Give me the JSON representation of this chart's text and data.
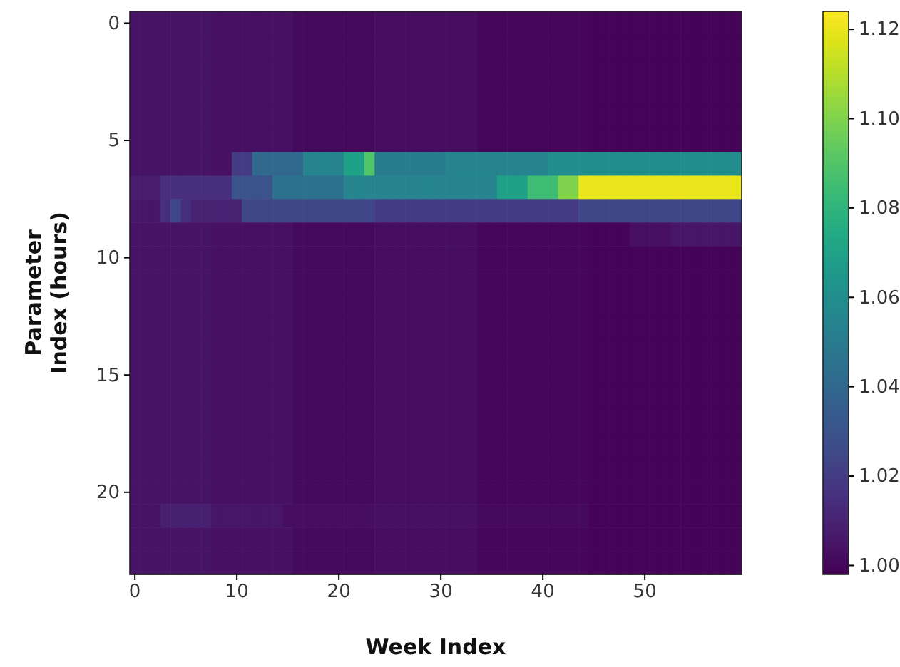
{
  "chart_data": {
    "type": "heatmap",
    "xlabel": "Week Index",
    "ylabel": "Parameter Index (hours)",
    "categories": [
      "0",
      null,
      null,
      null,
      null,
      null,
      null,
      null,
      null,
      null,
      "10",
      null,
      null,
      null,
      null,
      null,
      null,
      null,
      null,
      null,
      "20",
      null,
      null,
      null,
      null,
      null,
      null,
      null,
      null,
      null,
      "30",
      null,
      null,
      null,
      null,
      null,
      null,
      null,
      null,
      null,
      "40",
      null,
      null,
      null,
      null,
      null,
      null,
      null,
      null,
      null,
      "50",
      null,
      null,
      null,
      null,
      null,
      null,
      null,
      null,
      null
    ],
    "y_categories": [
      "0",
      null,
      null,
      null,
      null,
      "5",
      null,
      null,
      null,
      null,
      "10",
      null,
      null,
      null,
      null,
      "15",
      null,
      null,
      null,
      null,
      "20",
      null,
      null,
      null
    ],
    "clim": [
      0.998,
      1.124
    ],
    "cticks": [
      {
        "value": 1,
        "label": "1.00"
      },
      1.02,
      1.04,
      1.06,
      1.08,
      {
        "value": 1.1,
        "label": "1.10"
      },
      1.12
    ],
    "cells": [
      [
        1.004,
        1.004,
        1.004,
        1.004,
        1.004,
        1.004,
        1.004,
        1.004,
        1.003,
        1.003,
        1.003,
        1.003,
        1.003,
        1.003,
        1.003,
        1.003,
        1.001,
        1.001,
        1.001,
        1.001,
        1.001,
        1.001,
        1.001,
        1.001,
        1.002,
        1.002,
        1.002,
        1.002,
        1.002,
        1.002,
        1.002,
        1.002,
        1.002,
        1.002,
        1,
        1,
        1,
        1,
        1,
        1,
        1,
        1,
        1,
        1,
        1,
        0.999,
        0.999,
        0.999,
        0.999,
        0.999,
        0.999,
        0.999,
        0.999,
        0.999,
        0.999,
        0.999,
        0.999,
        0.999,
        0.999,
        0.999
      ],
      [
        1.004,
        1.004,
        1.004,
        1.004,
        1.004,
        1.004,
        1.004,
        1.004,
        1.003,
        1.003,
        1.003,
        1.003,
        1.003,
        1.003,
        1.003,
        1.003,
        1.001,
        1.001,
        1.001,
        1.001,
        1.001,
        1.001,
        1.001,
        1.001,
        1.002,
        1.002,
        1.002,
        1.002,
        1.002,
        1.002,
        1.002,
        1.002,
        1.002,
        1.002,
        1,
        1,
        1,
        1,
        1,
        1,
        1,
        1,
        1,
        1,
        1,
        0.999,
        0.999,
        0.999,
        0.999,
        0.999,
        0.999,
        0.999,
        0.999,
        0.999,
        0.999,
        0.999,
        0.999,
        0.999,
        0.999,
        0.999
      ],
      [
        1.004,
        1.004,
        1.004,
        1.004,
        1.004,
        1.004,
        1.004,
        1.004,
        1.003,
        1.003,
        1.003,
        1.003,
        1.003,
        1.003,
        1.003,
        1.003,
        1.001,
        1.001,
        1.001,
        1.001,
        1.001,
        1.001,
        1.001,
        1.001,
        1.002,
        1.002,
        1.002,
        1.002,
        1.002,
        1.002,
        1.002,
        1.002,
        1.002,
        1.002,
        1,
        1,
        1,
        1,
        1,
        1,
        1,
        1,
        1,
        1,
        1,
        0.999,
        0.999,
        0.999,
        0.999,
        0.999,
        0.999,
        0.999,
        0.999,
        0.999,
        0.999,
        0.999,
        0.999,
        0.999,
        0.999,
        0.999
      ],
      [
        1.004,
        1.004,
        1.004,
        1.004,
        1.004,
        1.004,
        1.004,
        1.004,
        1.003,
        1.003,
        1.003,
        1.003,
        1.003,
        1.003,
        1.003,
        1.003,
        1.001,
        1.001,
        1.001,
        1.001,
        1.001,
        1.001,
        1.001,
        1.001,
        1.002,
        1.002,
        1.002,
        1.002,
        1.002,
        1.002,
        1.002,
        1.002,
        1.002,
        1.002,
        1,
        1,
        1,
        1,
        1,
        1,
        1,
        1,
        1,
        1,
        1,
        0.999,
        0.999,
        0.999,
        0.999,
        0.999,
        0.999,
        0.999,
        0.999,
        0.999,
        0.999,
        0.999,
        0.999,
        0.999,
        0.999,
        0.999
      ],
      [
        1.004,
        1.004,
        1.004,
        1.004,
        1.004,
        1.004,
        1.004,
        1.004,
        1.003,
        1.003,
        1.003,
        1.003,
        1.003,
        1.003,
        1.003,
        1.003,
        1.001,
        1.001,
        1.001,
        1.001,
        1.001,
        1.001,
        1.001,
        1.001,
        1.002,
        1.002,
        1.002,
        1.002,
        1.002,
        1.002,
        1.002,
        1.002,
        1.002,
        1.002,
        1,
        1,
        1,
        1,
        1,
        1,
        1,
        1,
        1,
        1,
        1,
        0.999,
        0.999,
        0.999,
        0.999,
        0.999,
        0.999,
        0.999,
        0.999,
        0.999,
        0.999,
        0.999,
        0.999,
        0.999,
        0.999,
        0.999
      ],
      [
        1.004,
        1.004,
        1.004,
        1.004,
        1.004,
        1.004,
        1.004,
        1.004,
        1.003,
        1.003,
        1.003,
        1.003,
        1.003,
        1.003,
        1.003,
        1.003,
        1.001,
        1.001,
        1.001,
        1.001,
        1.001,
        1.001,
        1.001,
        1.001,
        1.002,
        1.002,
        1.002,
        1.002,
        1.002,
        1.002,
        1.002,
        1.002,
        1.002,
        1.002,
        1,
        1,
        1,
        1,
        1,
        1,
        1,
        1,
        1,
        1,
        1,
        0.999,
        0.999,
        0.999,
        0.999,
        0.999,
        0.999,
        0.999,
        0.999,
        0.999,
        0.999,
        0.999,
        0.999,
        0.999,
        0.999,
        0.999
      ],
      [
        1.004,
        1.004,
        1.004,
        1.004,
        1.004,
        1.004,
        1.004,
        1.004,
        1.003,
        1.003,
        1.02,
        1.02,
        1.04,
        1.04,
        1.04,
        1.04,
        1.04,
        1.055,
        1.055,
        1.055,
        1.055,
        1.07,
        1.07,
        1.09,
        1.05,
        1.05,
        1.05,
        1.05,
        1.05,
        1.05,
        1.05,
        1.055,
        1.055,
        1.055,
        1.055,
        1.055,
        1.055,
        1.055,
        1.055,
        1.055,
        1.055,
        1.06,
        1.06,
        1.06,
        1.06,
        1.06,
        1.06,
        1.06,
        1.06,
        1.06,
        1.06,
        1.06,
        1.06,
        1.06,
        1.06,
        1.06,
        1.06,
        1.06,
        1.06,
        1.06
      ],
      [
        1.008,
        1.008,
        1.008,
        1.015,
        1.015,
        1.015,
        1.015,
        1.015,
        1.015,
        1.015,
        1.03,
        1.03,
        1.03,
        1.03,
        1.045,
        1.045,
        1.045,
        1.045,
        1.045,
        1.045,
        1.045,
        1.055,
        1.055,
        1.055,
        1.055,
        1.055,
        1.055,
        1.055,
        1.055,
        1.055,
        1.055,
        1.055,
        1.055,
        1.055,
        1.055,
        1.055,
        1.07,
        1.07,
        1.07,
        1.085,
        1.085,
        1.085,
        1.1,
        1.1,
        1.12,
        1.12,
        1.12,
        1.12,
        1.12,
        1.12,
        1.12,
        1.12,
        1.12,
        1.12,
        1.12,
        1.12,
        1.12,
        1.12,
        1.12,
        1.12
      ],
      [
        1.005,
        1.005,
        1.005,
        1.015,
        1.025,
        1.015,
        1.01,
        1.01,
        1.01,
        1.01,
        1.01,
        1.025,
        1.025,
        1.025,
        1.025,
        1.025,
        1.025,
        1.025,
        1.025,
        1.025,
        1.025,
        1.025,
        1.025,
        1.025,
        1.02,
        1.02,
        1.02,
        1.02,
        1.02,
        1.02,
        1.02,
        1.02,
        1.02,
        1.02,
        1.02,
        1.02,
        1.02,
        1.02,
        1.02,
        1.02,
        1.02,
        1.02,
        1.02,
        1.02,
        1.025,
        1.025,
        1.025,
        1.025,
        1.025,
        1.025,
        1.025,
        1.025,
        1.025,
        1.025,
        1.025,
        1.025,
        1.025,
        1.025,
        1.025,
        1.025
      ],
      [
        1.004,
        1.004,
        1.004,
        1.004,
        1.004,
        1.004,
        1.004,
        1.004,
        1.003,
        1.003,
        1.003,
        1.003,
        1.003,
        1.003,
        1.003,
        1.003,
        1.001,
        1.001,
        1.001,
        1.001,
        1.001,
        1.001,
        1.001,
        1.001,
        1.002,
        1.002,
        1.002,
        1.002,
        1.002,
        1.002,
        1.002,
        1.002,
        1.002,
        1.002,
        1,
        1,
        1,
        1,
        1,
        1,
        1,
        1,
        1,
        1,
        1,
        0.999,
        0.999,
        0.999,
        0.999,
        1.003,
        1.003,
        1.003,
        1.003,
        1.005,
        1.005,
        1.005,
        1.005,
        1.005,
        1.005,
        1.005
      ],
      [
        1.004,
        1.004,
        1.004,
        1.004,
        1.004,
        1.004,
        1.004,
        1.004,
        1.003,
        1.003,
        1.003,
        1.003,
        1.003,
        1.003,
        1.003,
        1.003,
        1.001,
        1.001,
        1.001,
        1.001,
        1.001,
        1.001,
        1.001,
        1.001,
        1.002,
        1.002,
        1.002,
        1.002,
        1.002,
        1.002,
        1.002,
        1.002,
        1.002,
        1.002,
        1,
        1,
        1,
        1,
        1,
        1,
        1,
        1,
        1,
        1,
        1,
        0.999,
        0.999,
        0.999,
        0.999,
        0.999,
        0.999,
        0.999,
        0.999,
        0.999,
        0.999,
        0.999,
        0.999,
        0.999,
        0.999,
        0.999
      ],
      [
        1.004,
        1.004,
        1.004,
        1.004,
        1.004,
        1.004,
        1.004,
        1.004,
        1.003,
        1.003,
        1.003,
        1.003,
        1.003,
        1.003,
        1.003,
        1.003,
        1.001,
        1.001,
        1.001,
        1.001,
        1.001,
        1.001,
        1.001,
        1.001,
        1.002,
        1.002,
        1.002,
        1.002,
        1.002,
        1.002,
        1.002,
        1.002,
        1.002,
        1.002,
        1,
        1,
        1,
        1,
        1,
        1,
        1,
        1,
        1,
        1,
        1,
        0.999,
        0.999,
        0.999,
        0.999,
        0.999,
        0.999,
        0.999,
        0.999,
        0.999,
        0.999,
        0.999,
        0.999,
        0.999,
        0.999,
        0.999
      ],
      [
        1.004,
        1.004,
        1.004,
        1.004,
        1.004,
        1.004,
        1.004,
        1.004,
        1.003,
        1.003,
        1.003,
        1.003,
        1.003,
        1.003,
        1.003,
        1.003,
        1.001,
        1.001,
        1.001,
        1.001,
        1.001,
        1.001,
        1.001,
        1.001,
        1.002,
        1.002,
        1.002,
        1.002,
        1.002,
        1.002,
        1.002,
        1.002,
        1.002,
        1.002,
        1,
        1,
        1,
        1,
        1,
        1,
        1,
        1,
        1,
        1,
        1,
        0.999,
        0.999,
        0.999,
        0.999,
        0.999,
        0.999,
        0.999,
        0.999,
        0.999,
        0.999,
        0.999,
        0.999,
        0.999,
        0.999,
        0.999
      ],
      [
        1.004,
        1.004,
        1.004,
        1.004,
        1.004,
        1.004,
        1.004,
        1.004,
        1.003,
        1.003,
        1.003,
        1.003,
        1.003,
        1.003,
        1.003,
        1.003,
        1.001,
        1.001,
        1.001,
        1.001,
        1.001,
        1.001,
        1.001,
        1.001,
        1.002,
        1.002,
        1.002,
        1.002,
        1.002,
        1.002,
        1.002,
        1.002,
        1.002,
        1.002,
        1,
        1,
        1,
        1,
        1,
        1,
        1,
        1,
        1,
        1,
        1,
        0.999,
        0.999,
        0.999,
        0.999,
        0.999,
        0.999,
        0.999,
        0.999,
        0.999,
        0.999,
        0.999,
        0.999,
        0.999,
        0.999,
        0.999
      ],
      [
        1.004,
        1.004,
        1.004,
        1.004,
        1.004,
        1.004,
        1.004,
        1.004,
        1.003,
        1.003,
        1.003,
        1.003,
        1.003,
        1.003,
        1.003,
        1.003,
        1.001,
        1.001,
        1.001,
        1.001,
        1.001,
        1.001,
        1.001,
        1.001,
        1.002,
        1.002,
        1.002,
        1.002,
        1.002,
        1.002,
        1.002,
        1.002,
        1.002,
        1.002,
        1,
        1,
        1,
        1,
        1,
        1,
        1,
        1,
        1,
        1,
        1,
        0.999,
        0.999,
        0.999,
        0.999,
        0.999,
        0.999,
        0.999,
        0.999,
        0.999,
        0.999,
        0.999,
        0.999,
        0.999,
        0.999,
        0.999
      ],
      [
        1.004,
        1.004,
        1.004,
        1.004,
        1.004,
        1.004,
        1.004,
        1.004,
        1.003,
        1.003,
        1.003,
        1.003,
        1.003,
        1.003,
        1.003,
        1.003,
        1.001,
        1.001,
        1.001,
        1.001,
        1.001,
        1.001,
        1.001,
        1.001,
        1.002,
        1.002,
        1.002,
        1.002,
        1.002,
        1.002,
        1.002,
        1.002,
        1.002,
        1.002,
        1,
        1,
        1,
        1,
        1,
        1,
        1,
        1,
        1,
        1,
        1,
        0.999,
        0.999,
        0.999,
        0.999,
        0.999,
        0.999,
        0.999,
        0.999,
        0.999,
        0.999,
        0.999,
        0.999,
        0.999,
        0.999,
        0.999
      ],
      [
        1.004,
        1.004,
        1.004,
        1.004,
        1.004,
        1.004,
        1.004,
        1.004,
        1.003,
        1.003,
        1.003,
        1.003,
        1.003,
        1.003,
        1.003,
        1.003,
        1.001,
        1.001,
        1.001,
        1.001,
        1.001,
        1.001,
        1.001,
        1.001,
        1.002,
        1.002,
        1.002,
        1.002,
        1.002,
        1.002,
        1.002,
        1.002,
        1.002,
        1.002,
        1,
        1,
        1,
        1,
        1,
        1,
        1,
        1,
        1,
        1,
        1,
        0.999,
        0.999,
        0.999,
        0.999,
        0.999,
        0.999,
        0.999,
        0.999,
        0.999,
        0.999,
        0.999,
        0.999,
        0.999,
        0.999,
        0.999
      ],
      [
        1.004,
        1.004,
        1.004,
        1.004,
        1.004,
        1.004,
        1.004,
        1.004,
        1.003,
        1.003,
        1.003,
        1.003,
        1.003,
        1.003,
        1.003,
        1.003,
        1.001,
        1.001,
        1.001,
        1.001,
        1.001,
        1.001,
        1.001,
        1.001,
        1.002,
        1.002,
        1.002,
        1.002,
        1.002,
        1.002,
        1.002,
        1.002,
        1.002,
        1.002,
        1,
        1,
        1,
        1,
        1,
        1,
        1,
        1,
        1,
        1,
        1,
        0.999,
        0.999,
        0.999,
        0.999,
        0.999,
        0.999,
        0.999,
        0.999,
        0.999,
        0.999,
        0.999,
        0.999,
        0.999,
        0.999,
        0.999
      ],
      [
        1.004,
        1.004,
        1.004,
        1.004,
        1.004,
        1.004,
        1.004,
        1.004,
        1.003,
        1.003,
        1.003,
        1.003,
        1.003,
        1.003,
        1.003,
        1.003,
        1.001,
        1.001,
        1.001,
        1.001,
        1.001,
        1.001,
        1.001,
        1.001,
        1.002,
        1.002,
        1.002,
        1.002,
        1.002,
        1.002,
        1.002,
        1.002,
        1.002,
        1.002,
        1,
        1,
        1,
        1,
        1,
        1,
        1,
        1,
        1,
        1,
        1,
        0.999,
        0.999,
        0.999,
        0.999,
        0.999,
        0.999,
        0.999,
        0.999,
        0.999,
        0.999,
        0.999,
        0.999,
        0.999,
        0.999,
        0.999
      ],
      [
        1.004,
        1.004,
        1.004,
        1.004,
        1.004,
        1.004,
        1.004,
        1.004,
        1.003,
        1.003,
        1.003,
        1.003,
        1.003,
        1.003,
        1.003,
        1.003,
        1.001,
        1.001,
        1.001,
        1.001,
        1.001,
        1.001,
        1.001,
        1.001,
        1.002,
        1.002,
        1.002,
        1.002,
        1.002,
        1.002,
        1.002,
        1.002,
        1.002,
        1.002,
        1,
        1,
        1,
        1,
        1,
        1,
        1,
        1,
        1,
        1,
        1,
        0.999,
        0.999,
        0.999,
        0.999,
        0.999,
        0.999,
        0.999,
        0.999,
        0.999,
        0.999,
        0.999,
        0.999,
        0.999,
        0.999,
        0.999
      ],
      [
        1.004,
        1.004,
        1.004,
        1.004,
        1.004,
        1.004,
        1.004,
        1.004,
        1.003,
        1.003,
        1.003,
        1.003,
        1.003,
        1.003,
        1.003,
        1.003,
        1.001,
        1.001,
        1.001,
        1.001,
        1.001,
        1.001,
        1.001,
        1.001,
        1.002,
        1.002,
        1.002,
        1.002,
        1.002,
        1.002,
        1.002,
        1.002,
        1.002,
        1.002,
        1,
        1,
        1,
        1,
        1,
        1,
        1,
        1,
        1,
        1,
        1,
        0.999,
        0.999,
        0.999,
        0.999,
        0.999,
        0.999,
        0.999,
        0.999,
        0.999,
        0.999,
        0.999,
        0.999,
        0.999,
        0.999,
        0.999
      ],
      [
        1.004,
        1.004,
        1.004,
        1.009,
        1.009,
        1.009,
        1.009,
        1.009,
        1.005,
        1.005,
        1.005,
        1.005,
        1.005,
        1.005,
        1.005,
        1.002,
        1.002,
        1.002,
        1.002,
        1.002,
        1.002,
        1.002,
        1.002,
        1.002,
        1.003,
        1.003,
        1.003,
        1.003,
        1.003,
        1.003,
        1.003,
        1.003,
        1.003,
        1.003,
        1.001,
        1.001,
        1.001,
        1.001,
        1.001,
        1.001,
        1.001,
        1.001,
        1.001,
        1.001,
        1.001,
        0.999,
        0.999,
        0.999,
        0.999,
        0.999,
        0.999,
        0.999,
        0.999,
        0.999,
        0.999,
        0.999,
        0.999,
        0.999,
        0.999,
        0.999
      ],
      [
        1.004,
        1.004,
        1.004,
        1.004,
        1.004,
        1.004,
        1.004,
        1.004,
        1.003,
        1.003,
        1.003,
        1.003,
        1.003,
        1.003,
        1.003,
        1.003,
        1.001,
        1.001,
        1.001,
        1.001,
        1.001,
        1.001,
        1.001,
        1.001,
        1.002,
        1.002,
        1.002,
        1.002,
        1.002,
        1.002,
        1.002,
        1.002,
        1.002,
        1.002,
        1,
        1,
        1,
        1,
        1,
        1,
        1,
        1,
        1,
        1,
        1,
        0.999,
        0.999,
        0.999,
        0.999,
        0.999,
        0.999,
        0.999,
        0.999,
        0.999,
        0.999,
        0.999,
        0.999,
        0.999,
        0.999,
        0.999
      ],
      [
        1.004,
        1.004,
        1.004,
        1.004,
        1.004,
        1.004,
        1.004,
        1.004,
        1.003,
        1.003,
        1.003,
        1.003,
        1.003,
        1.003,
        1.003,
        1.003,
        1.001,
        1.001,
        1.001,
        1.001,
        1.001,
        1.001,
        1.001,
        1.001,
        1.002,
        1.002,
        1.002,
        1.002,
        1.002,
        1.002,
        1.002,
        1.002,
        1.002,
        1.002,
        1,
        1,
        1,
        1,
        1,
        1,
        1,
        1,
        1,
        1,
        1,
        0.999,
        0.999,
        0.999,
        0.999,
        0.999,
        0.999,
        0.999,
        0.999,
        0.999,
        0.999,
        0.999,
        0.999,
        0.999,
        0.999,
        0.999
      ]
    ]
  }
}
